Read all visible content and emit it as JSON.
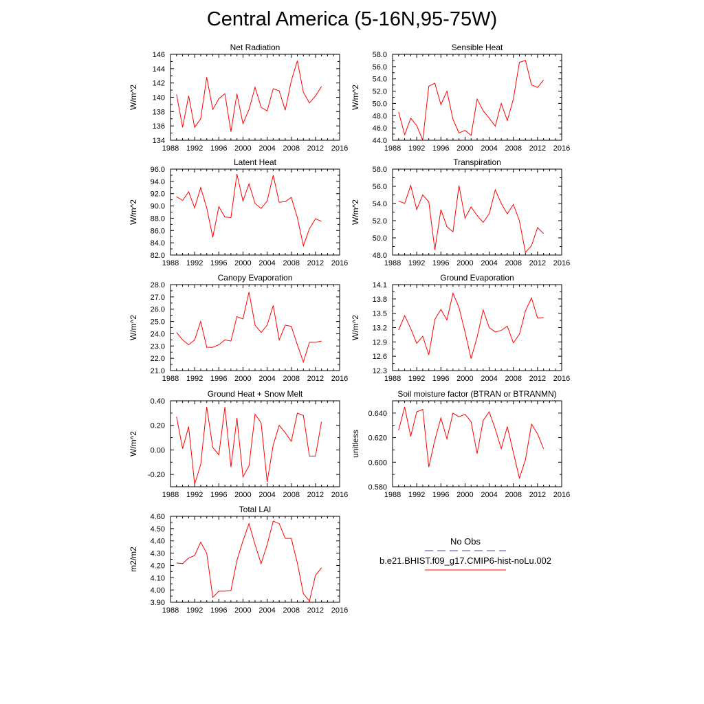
{
  "title": "Central America (5-16N,95-75W)",
  "colors": {
    "model": "#ff0000",
    "obs": "#4a4a9a"
  },
  "legend": {
    "obs_label": "No Obs",
    "model_label": "b.e21.BHIST.f09_g17.CMIP6-hist-noLu.002"
  },
  "chart_data": [
    {
      "type": "line",
      "title": "Net Radiation",
      "xlabel": "",
      "ylabel": "W/m^2",
      "xlim": [
        1988,
        2016
      ],
      "ylim": [
        134,
        146
      ],
      "xticks": [
        "1988",
        "1992",
        "1996",
        "2000",
        "2004",
        "2008",
        "2012",
        "2016"
      ],
      "yticks": [
        "134",
        "136",
        "138",
        "140",
        "142",
        "144",
        "146"
      ],
      "x": [
        1989,
        1990,
        1991,
        1992,
        1993,
        1994,
        1995,
        1996,
        1997,
        1998,
        1999,
        2000,
        2001,
        2002,
        2003,
        2004,
        2005,
        2006,
        2007,
        2008,
        2009,
        2010,
        2011,
        2012,
        2013
      ],
      "series": [
        {
          "name": "b.e21.BHIST.f09_g17.CMIP6-hist-noLu.002",
          "values": [
            140.4,
            135.8,
            140.2,
            135.8,
            137.0,
            142.8,
            138.3,
            139.8,
            140.5,
            135.2,
            140.5,
            136.3,
            138.3,
            141.4,
            138.6,
            138.1,
            141.2,
            140.9,
            138.2,
            142.3,
            145.1,
            140.7,
            139.2,
            140.2,
            141.5
          ]
        }
      ]
    },
    {
      "type": "line",
      "title": "Sensible Heat",
      "xlabel": "",
      "ylabel": "W/m^2",
      "xlim": [
        1988,
        2016
      ],
      "ylim": [
        44,
        58
      ],
      "xticks": [
        "1988",
        "1992",
        "1996",
        "2000",
        "2004",
        "2008",
        "2012",
        "2016"
      ],
      "yticks": [
        "44.0",
        "46.0",
        "48.0",
        "50.0",
        "52.0",
        "54.0",
        "56.0",
        "58.0"
      ],
      "x": [
        1989,
        1990,
        1991,
        1992,
        1993,
        1994,
        1995,
        1996,
        1997,
        1998,
        1999,
        2000,
        2001,
        2002,
        2003,
        2004,
        2005,
        2006,
        2007,
        2008,
        2009,
        2010,
        2011,
        2012,
        2013
      ],
      "series": [
        {
          "name": "b.e21.BHIST.f09_g17.CMIP6-hist-noLu.002",
          "values": [
            48.6,
            44.9,
            47.6,
            46.4,
            44.0,
            52.8,
            53.3,
            49.8,
            52.0,
            47.4,
            45.2,
            45.6,
            44.8,
            50.7,
            48.8,
            47.6,
            46.3,
            50.0,
            47.2,
            50.7,
            56.7,
            57.0,
            53.0,
            52.6,
            53.8
          ]
        }
      ]
    },
    {
      "type": "line",
      "title": "Latent Heat",
      "xlabel": "",
      "ylabel": "W/m^2",
      "xlim": [
        1988,
        2016
      ],
      "ylim": [
        82,
        96
      ],
      "xticks": [
        "1988",
        "1992",
        "1996",
        "2000",
        "2004",
        "2008",
        "2012",
        "2016"
      ],
      "yticks": [
        "82.0",
        "84.0",
        "86.0",
        "88.0",
        "90.0",
        "92.0",
        "94.0",
        "96.0"
      ],
      "x": [
        1989,
        1990,
        1991,
        1992,
        1993,
        1994,
        1995,
        1996,
        1997,
        1998,
        1999,
        2000,
        2001,
        2002,
        2003,
        2004,
        2005,
        2006,
        2007,
        2008,
        2009,
        2010,
        2011,
        2012,
        2013
      ],
      "series": [
        {
          "name": "b.e21.BHIST.f09_g17.CMIP6-hist-noLu.002",
          "values": [
            91.5,
            90.9,
            92.3,
            89.7,
            93.0,
            89.7,
            84.9,
            89.9,
            88.2,
            88.1,
            95.2,
            90.8,
            93.6,
            90.4,
            89.6,
            90.8,
            95.0,
            90.6,
            90.7,
            91.4,
            88.1,
            83.5,
            86.3,
            87.9,
            87.5
          ]
        }
      ]
    },
    {
      "type": "line",
      "title": "Transpiration",
      "xlabel": "",
      "ylabel": "W/m^2",
      "xlim": [
        1988,
        2016
      ],
      "ylim": [
        48,
        58
      ],
      "xticks": [
        "1988",
        "1992",
        "1996",
        "2000",
        "2004",
        "2008",
        "2012",
        "2016"
      ],
      "yticks": [
        "48.0",
        "50.0",
        "52.0",
        "54.0",
        "56.0",
        "58.0"
      ],
      "x": [
        1989,
        1990,
        1991,
        1992,
        1993,
        1994,
        1995,
        1996,
        1997,
        1998,
        1999,
        2000,
        2001,
        2002,
        2003,
        2004,
        2005,
        2006,
        2007,
        2008,
        2009,
        2010,
        2011,
        2012,
        2013
      ],
      "series": [
        {
          "name": "b.e21.BHIST.f09_g17.CMIP6-hist-noLu.002",
          "values": [
            54.3,
            54.0,
            56.1,
            53.3,
            55.0,
            54.2,
            48.6,
            53.3,
            51.3,
            50.7,
            56.1,
            52.3,
            53.6,
            52.6,
            51.8,
            52.8,
            55.6,
            54.0,
            52.8,
            53.9,
            52.0,
            48.3,
            49.1,
            51.2,
            50.5
          ]
        }
      ]
    },
    {
      "type": "line",
      "title": "Canopy Evaporation",
      "xlabel": "",
      "ylabel": "W/m^2",
      "xlim": [
        1988,
        2016
      ],
      "ylim": [
        21,
        28
      ],
      "xticks": [
        "1988",
        "1992",
        "1996",
        "2000",
        "2004",
        "2008",
        "2012",
        "2016"
      ],
      "yticks": [
        "21.0",
        "22.0",
        "23.0",
        "24.0",
        "25.0",
        "26.0",
        "27.0",
        "28.0"
      ],
      "x": [
        1989,
        1990,
        1991,
        1992,
        1993,
        1994,
        1995,
        1996,
        1997,
        1998,
        1999,
        2000,
        2001,
        2002,
        2003,
        2004,
        2005,
        2006,
        2007,
        2008,
        2009,
        2010,
        2011,
        2012,
        2013
      ],
      "series": [
        {
          "name": "b.e21.BHIST.f09_g17.CMIP6-hist-noLu.002",
          "values": [
            24.1,
            23.5,
            23.1,
            23.5,
            25.0,
            22.9,
            22.9,
            23.1,
            23.5,
            23.4,
            25.4,
            25.2,
            27.4,
            24.7,
            24.1,
            24.7,
            26.3,
            23.5,
            24.7,
            24.6,
            23.1,
            21.7,
            23.3,
            23.3,
            23.4
          ]
        }
      ]
    },
    {
      "type": "line",
      "title": "Ground Evaporation",
      "xlabel": "",
      "ylabel": "W/m^2",
      "xlim": [
        1988,
        2016
      ],
      "ylim": [
        12.3,
        14.1
      ],
      "xticks": [
        "1988",
        "1992",
        "1996",
        "2000",
        "2004",
        "2008",
        "2012",
        "2016"
      ],
      "yticks": [
        "12.3",
        "12.6",
        "12.9",
        "13.2",
        "13.5",
        "13.8",
        "14.1"
      ],
      "x": [
        1989,
        1990,
        1991,
        1992,
        1993,
        1994,
        1995,
        1996,
        1997,
        1998,
        1999,
        2000,
        2001,
        2002,
        2003,
        2004,
        2005,
        2006,
        2007,
        2008,
        2009,
        2010,
        2011,
        2012,
        2013
      ],
      "series": [
        {
          "name": "b.e21.BHIST.f09_g17.CMIP6-hist-noLu.002",
          "values": [
            13.15,
            13.45,
            13.18,
            12.87,
            13.02,
            12.63,
            13.37,
            13.58,
            13.36,
            13.92,
            13.62,
            13.11,
            12.55,
            13.0,
            13.57,
            13.2,
            13.11,
            13.14,
            13.23,
            12.88,
            13.06,
            13.55,
            13.82,
            13.4,
            13.41
          ]
        }
      ]
    },
    {
      "type": "line",
      "title": "Ground Heat + Snow Melt",
      "xlabel": "",
      "ylabel": "W/m^2",
      "xlim": [
        1988,
        2016
      ],
      "ylim": [
        -0.3,
        0.4
      ],
      "xticks": [
        "1988",
        "1992",
        "1996",
        "2000",
        "2004",
        "2008",
        "2012",
        "2016"
      ],
      "yticks": [
        "-0.20",
        "0.00",
        "0.20",
        "0.40"
      ],
      "ytick_values": [
        -0.2,
        0.0,
        0.2,
        0.4
      ],
      "x": [
        1989,
        1990,
        1991,
        1992,
        1993,
        1994,
        1995,
        1996,
        1997,
        1998,
        1999,
        2000,
        2001,
        2002,
        2003,
        2004,
        2005,
        2006,
        2007,
        2008,
        2009,
        2010,
        2011,
        2012,
        2013
      ],
      "series": [
        {
          "name": "b.e21.BHIST.f09_g17.CMIP6-hist-noLu.002",
          "values": [
            0.27,
            0.01,
            0.19,
            -0.28,
            -0.12,
            0.35,
            0.02,
            -0.04,
            0.35,
            -0.14,
            0.26,
            -0.22,
            -0.13,
            0.29,
            0.22,
            -0.26,
            0.04,
            0.2,
            0.14,
            0.07,
            0.3,
            0.28,
            -0.05,
            -0.05,
            0.23
          ]
        }
      ]
    },
    {
      "type": "line",
      "title": "Soil moisture factor (BTRAN or BTRANMN)",
      "xlabel": "",
      "ylabel": "unitless",
      "xlim": [
        1988,
        2016
      ],
      "ylim": [
        0.58,
        0.65
      ],
      "xticks": [
        "1988",
        "1992",
        "1996",
        "2000",
        "2004",
        "2008",
        "2012",
        "2016"
      ],
      "yticks": [
        "0.580",
        "0.600",
        "0.620",
        "0.640"
      ],
      "ytick_values": [
        0.58,
        0.6,
        0.62,
        0.64
      ],
      "x": [
        1989,
        1990,
        1991,
        1992,
        1993,
        1994,
        1995,
        1996,
        1997,
        1998,
        1999,
        2000,
        2001,
        2002,
        2003,
        2004,
        2005,
        2006,
        2007,
        2008,
        2009,
        2010,
        2011,
        2012,
        2013
      ],
      "series": [
        {
          "name": "b.e21.BHIST.f09_g17.CMIP6-hist-noLu.002",
          "values": [
            0.626,
            0.645,
            0.621,
            0.641,
            0.643,
            0.596,
            0.618,
            0.636,
            0.619,
            0.64,
            0.637,
            0.639,
            0.633,
            0.607,
            0.634,
            0.641,
            0.627,
            0.611,
            0.629,
            0.608,
            0.587,
            0.602,
            0.631,
            0.623,
            0.611
          ]
        }
      ]
    },
    {
      "type": "line",
      "title": "Total LAI",
      "xlabel": "",
      "ylabel": "m2/m2",
      "xlim": [
        1988,
        2016
      ],
      "ylim": [
        3.9,
        4.6
      ],
      "xticks": [
        "1988",
        "1992",
        "1996",
        "2000",
        "2004",
        "2008",
        "2012",
        "2016"
      ],
      "yticks": [
        "3.90",
        "4.00",
        "4.10",
        "4.20",
        "4.30",
        "4.40",
        "4.50",
        "4.60"
      ],
      "x": [
        1989,
        1990,
        1991,
        1992,
        1993,
        1994,
        1995,
        1996,
        1997,
        1998,
        1999,
        2000,
        2001,
        2002,
        2003,
        2004,
        2005,
        2006,
        2007,
        2008,
        2009,
        2010,
        2011,
        2012,
        2013
      ],
      "series": [
        {
          "name": "b.e21.BHIST.f09_g17.CMIP6-hist-noLu.002",
          "values": [
            4.22,
            4.215,
            4.26,
            4.28,
            4.39,
            4.3,
            3.94,
            3.99,
            3.99,
            3.995,
            4.24,
            4.4,
            4.54,
            4.37,
            4.215,
            4.37,
            4.56,
            4.54,
            4.42,
            4.42,
            4.22,
            3.97,
            3.91,
            4.12,
            4.18
          ]
        }
      ]
    }
  ]
}
